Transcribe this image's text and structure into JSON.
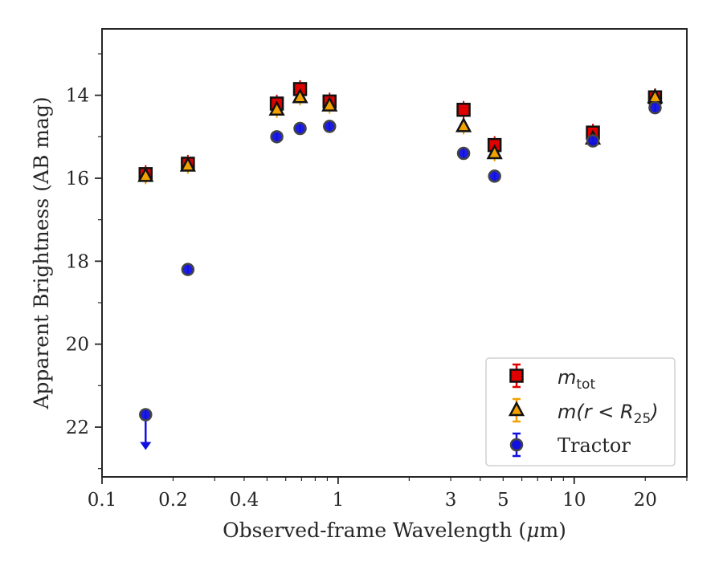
{
  "chart_data": {
    "type": "scatter",
    "xscale": "log",
    "yscale": "linear",
    "yaxis_inverted": true,
    "xlim": [
      0.1,
      30
    ],
    "ylim": [
      23.2,
      12.4
    ],
    "xlabel": "Observed-frame Wavelength (μm)",
    "xlabel_parts": {
      "prefix": "Observed-frame Wavelength (",
      "mu": "μ",
      "suffix": "m)"
    },
    "ylabel": "Apparent Brightness (AB mag)",
    "x_tick_labels": [
      {
        "value": 0.1,
        "label": "0.1"
      },
      {
        "value": 0.2,
        "label": "0.2"
      },
      {
        "value": 0.4,
        "label": "0.4"
      },
      {
        "value": 1,
        "label": "1"
      },
      {
        "value": 3,
        "label": "3"
      },
      {
        "value": 5,
        "label": "5"
      },
      {
        "value": 10,
        "label": "10"
      },
      {
        "value": 20,
        "label": "20"
      }
    ],
    "y_tick_labels": [
      {
        "value": 14,
        "label": "14"
      },
      {
        "value": 16,
        "label": "16"
      },
      {
        "value": 18,
        "label": "18"
      },
      {
        "value": 20,
        "label": "20"
      },
      {
        "value": 22,
        "label": "22"
      }
    ],
    "grid": false,
    "legend_position": "lower-right",
    "series": [
      {
        "name": "m_tot",
        "legend_main": "m",
        "legend_sub": "tot",
        "marker": "square",
        "face_color": "#e00000",
        "edge_color": "#111111",
        "error_color": "#e00000",
        "x": [
          0.153,
          0.231,
          0.55,
          0.69,
          0.92,
          3.4,
          4.6,
          12.0,
          22.0
        ],
        "y": [
          15.9,
          15.65,
          14.2,
          13.85,
          14.15,
          14.35,
          15.2,
          14.9,
          14.05
        ]
      },
      {
        "name": "m(r < R_25)",
        "legend_main": "m(r < R",
        "legend_sub": "25",
        "legend_end": ")",
        "marker": "triangle",
        "face_color": "#f2a100",
        "edge_color": "#111111",
        "error_color": "#f2a100",
        "x": [
          0.153,
          0.231,
          0.55,
          0.69,
          0.92,
          3.4,
          4.6,
          12.0,
          22.0
        ],
        "y": [
          15.95,
          15.7,
          14.35,
          14.05,
          14.25,
          14.75,
          15.4,
          15.05,
          14.05
        ]
      },
      {
        "name": "Tractor",
        "legend_main": "Tractor",
        "marker": "circle",
        "face_color": "#1010e0",
        "edge_color": "#444444",
        "error_color": "#1010e0",
        "x": [
          0.153,
          0.231,
          0.55,
          0.69,
          0.92,
          3.4,
          4.6,
          12.0,
          22.0
        ],
        "y": [
          21.7,
          18.2,
          15.0,
          14.8,
          14.75,
          15.4,
          15.95,
          15.1,
          14.3
        ],
        "upper_limit_x": [
          0.153
        ]
      }
    ]
  }
}
